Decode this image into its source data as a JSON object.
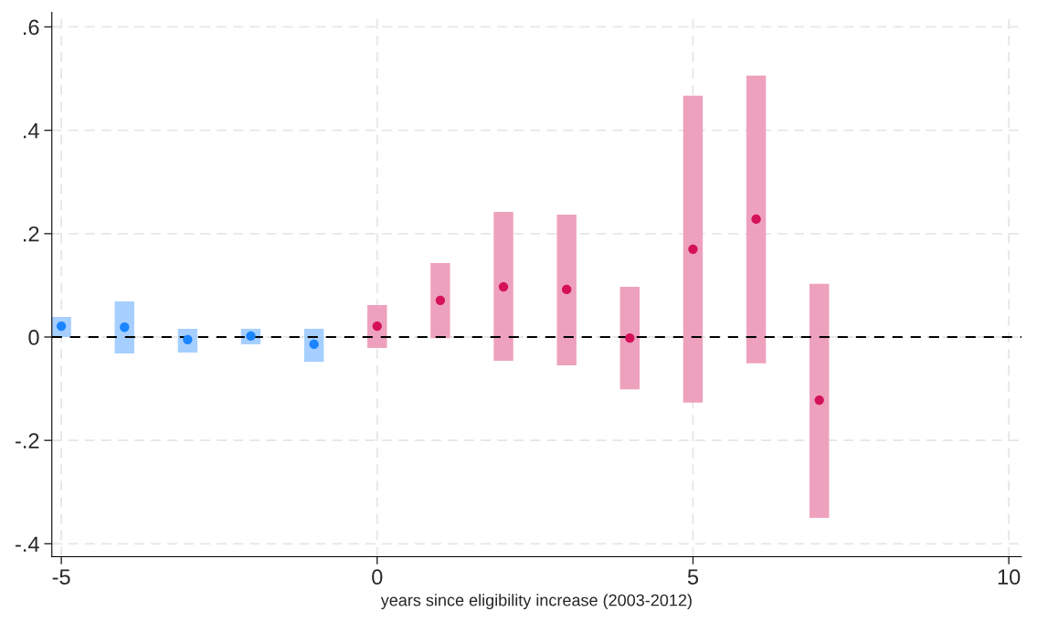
{
  "chart_data": {
    "type": "bar",
    "xlabel": "years since eligibility increase (2003-2012)",
    "series": [
      {
        "x": [
          -5,
          -4,
          -3,
          -2,
          -1,
          0,
          1,
          2,
          3,
          4,
          5,
          6,
          7
        ],
        "base": [
          0.0,
          -0.032,
          -0.03,
          -0.014,
          -0.048,
          -0.021,
          -0.002,
          -0.046,
          -0.055,
          -0.101,
          -0.127,
          -0.051,
          -0.35
        ],
        "values": [
          0.039,
          0.101,
          0.046,
          0.03,
          0.064,
          0.083,
          0.145,
          0.288,
          0.292,
          0.198,
          0.594,
          0.557,
          0.453
        ],
        "colors": [
          "#a6cfff",
          "#a6cfff",
          "#a6cfff",
          "#a6cfff",
          "#a6cfff",
          "#eea1bd",
          "#eea1bd",
          "#eea1bd",
          "#eea1bd",
          "#eea1bd",
          "#eea1bd",
          "#eea1bd",
          "#eea1bd"
        ]
      },
      {
        "type": "scatter",
        "x": [
          -5,
          -4,
          -3,
          -2,
          -1,
          0,
          1,
          2,
          3,
          4,
          5,
          6,
          7
        ],
        "values": [
          0.021,
          0.019,
          -0.005,
          0.002,
          -0.014,
          0.021,
          0.071,
          0.097,
          0.092,
          -0.002,
          0.17,
          0.228,
          -0.122
        ],
        "colors": [
          "#1a85ff",
          "#1a85ff",
          "#1a85ff",
          "#1a85ff",
          "#1a85ff",
          "#d41159",
          "#d41159",
          "#d41159",
          "#d41159",
          "#d41159",
          "#d41159",
          "#d41159",
          "#d41159"
        ]
      }
    ],
    "marker": "circle",
    "xlim": [
      -5.15,
      10.2
    ],
    "xticks": [
      -5,
      0,
      5,
      10
    ],
    "ylim": [
      -0.425,
      0.628
    ],
    "yticks": [
      {
        "value": -0.4,
        "label": "-.4"
      },
      {
        "value": -0.2,
        "label": "-.2"
      },
      {
        "value": 0,
        "label": "0"
      },
      {
        "value": 0.2,
        "label": ".2"
      },
      {
        "value": 0.4,
        "label": ".4"
      },
      {
        "value": 0.6,
        "label": ".6"
      }
    ],
    "ref_lines": [
      {
        "axis": "y",
        "value": 0,
        "color": "#000000",
        "line_style": "dashed"
      }
    ],
    "grid": true,
    "legend": false
  }
}
